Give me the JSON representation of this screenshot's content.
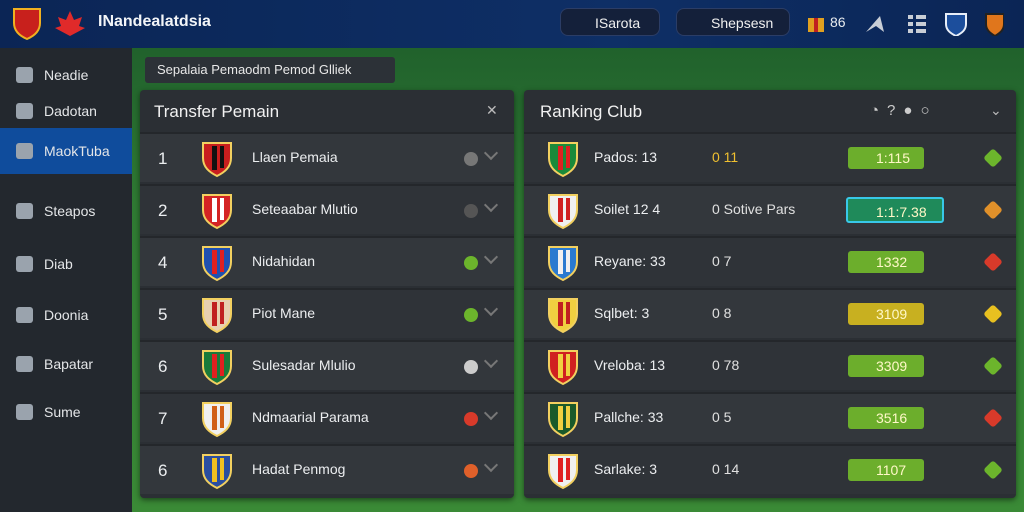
{
  "header": {
    "brand": "INandealatdsia",
    "buttons": [
      "ISarota",
      "Shepsesn"
    ],
    "badge": "86"
  },
  "sidebar": {
    "items": [
      "Neadie",
      "Dadotan",
      "MaokTuba",
      "Steapos",
      "Diab",
      "Doonia",
      "Bapatar",
      "Sume"
    ]
  },
  "breadcrumb": "Sepalaia Pemaodm Pemod Glliek",
  "transfer": {
    "title": "Transfer Pemain",
    "rows": [
      [
        "1",
        "Llaen Pemaia"
      ],
      [
        "2",
        "Seteaabar Mlutio"
      ],
      [
        "4",
        "Nidahidan"
      ],
      [
        "5",
        "Piot Mane"
      ],
      [
        "6",
        "Sulesadar Mlulio"
      ],
      [
        "7",
        "Ndmaarial Parama"
      ],
      [
        "6",
        "Hadat Penmog"
      ]
    ]
  },
  "ranking": {
    "title": "Ranking Club",
    "rows": [
      [
        "Pados: 13",
        "0 11",
        "1:115"
      ],
      [
        "Soilet 12 4",
        "0 Sotive Pars",
        "1:1:7.38"
      ],
      [
        "Reyane: 33",
        "0 7",
        "1332"
      ],
      [
        "Sqlbet: 3",
        "0 8",
        "3109"
      ],
      [
        "Vreloba: 13",
        "0 78",
        "3309"
      ],
      [
        "Pallche: 33",
        "0 5",
        "3516"
      ],
      [
        "Sarlake: 3",
        "0 14",
        "1107"
      ]
    ]
  }
}
